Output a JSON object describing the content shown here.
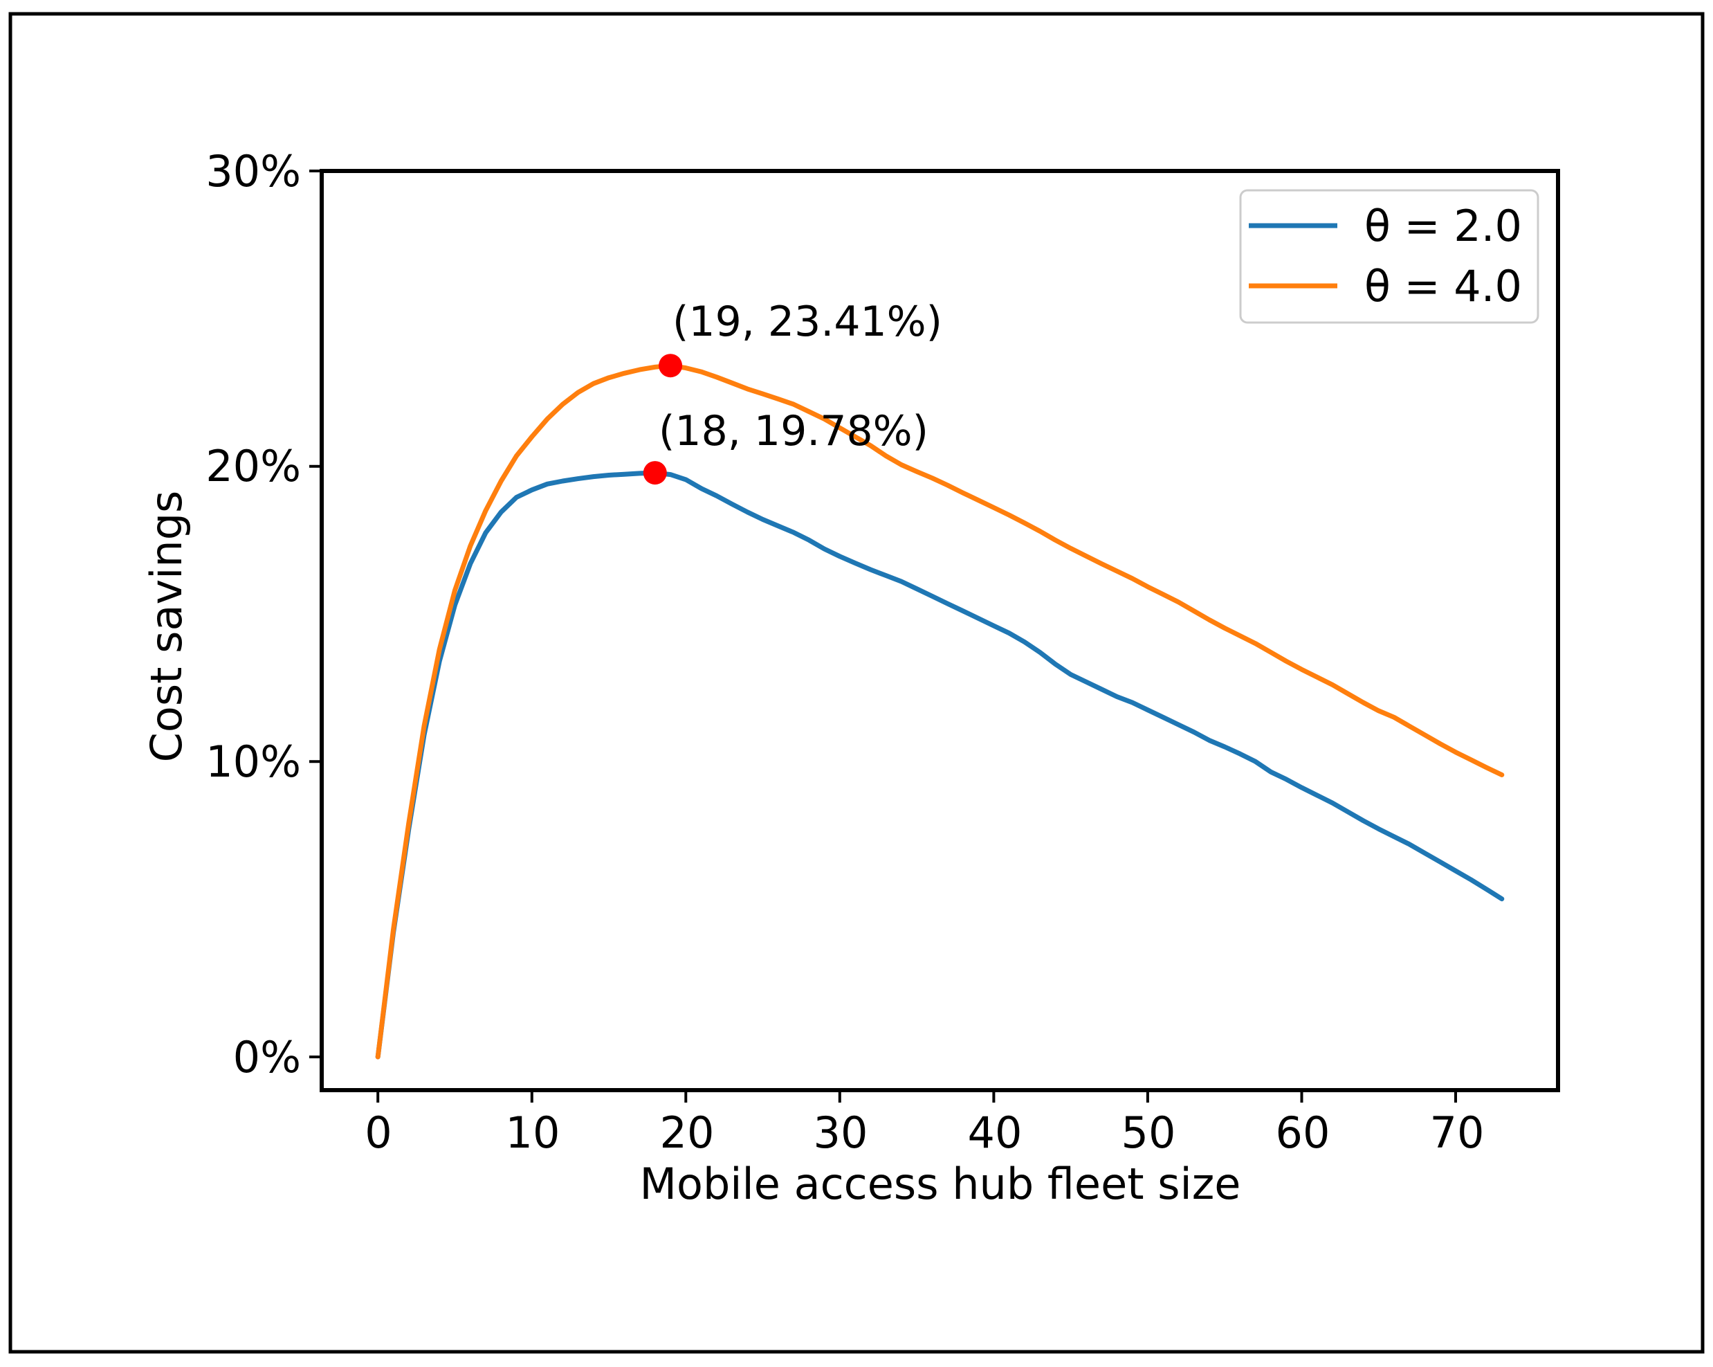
{
  "figure": {
    "background": "#ffffff",
    "outer_border_color": "#000000"
  },
  "chart_data": {
    "type": "line",
    "title": "",
    "xlabel": "Mobile access hub fleet size",
    "ylabel": "Cost savings",
    "grid": false,
    "xlim": [
      -3.65,
      76.65
    ],
    "ylim_pct": [
      -1.125,
      30
    ],
    "xticks": {
      "values": [
        0,
        10,
        20,
        30,
        40,
        50,
        60,
        70
      ],
      "labels": [
        "0",
        "10",
        "20",
        "30",
        "40",
        "50",
        "60",
        "70"
      ]
    },
    "yticks": {
      "values": [
        0,
        10,
        20,
        30
      ],
      "labels": [
        "0%",
        "10%",
        "20%",
        "30%"
      ]
    },
    "legend": {
      "position": "upper right",
      "entries": [
        {
          "label": "θ = 2.0",
          "color": "#1f77b4"
        },
        {
          "label": "θ = 4.0",
          "color": "#ff7f0e"
        }
      ]
    },
    "series": [
      {
        "name": "θ = 2.0",
        "color": "#1f77b4",
        "x_start": 0,
        "values_pct": [
          0.0,
          4.2,
          7.7,
          10.9,
          13.4,
          15.3,
          16.7,
          17.75,
          18.45,
          18.95,
          19.2,
          19.4,
          19.5,
          19.58,
          19.65,
          19.7,
          19.73,
          19.76,
          19.78,
          19.72,
          19.55,
          19.25,
          19.0,
          18.72,
          18.45,
          18.2,
          17.98,
          17.76,
          17.5,
          17.2,
          16.95,
          16.72,
          16.5,
          16.3,
          16.1,
          15.85,
          15.6,
          15.35,
          15.1,
          14.85,
          14.6,
          14.35,
          14.05,
          13.7,
          13.3,
          12.95,
          12.7,
          12.45,
          12.2,
          12.0,
          11.75,
          11.5,
          11.25,
          11.0,
          10.72,
          10.5,
          10.26,
          10.0,
          9.65,
          9.4,
          9.12,
          8.86,
          8.6,
          8.3,
          8.0,
          7.72,
          7.46,
          7.2,
          6.9,
          6.6,
          6.3,
          6.0,
          5.68,
          5.35
        ]
      },
      {
        "name": "θ = 4.0",
        "color": "#ff7f0e",
        "x_start": 0,
        "values_pct": [
          0.0,
          4.3,
          7.9,
          11.2,
          13.8,
          15.8,
          17.3,
          18.5,
          19.5,
          20.35,
          21.0,
          21.6,
          22.1,
          22.5,
          22.8,
          23.0,
          23.15,
          23.27,
          23.36,
          23.41,
          23.33,
          23.2,
          23.02,
          22.82,
          22.62,
          22.45,
          22.28,
          22.1,
          21.85,
          21.6,
          21.3,
          21.0,
          20.7,
          20.35,
          20.05,
          19.82,
          19.6,
          19.36,
          19.1,
          18.85,
          18.6,
          18.35,
          18.08,
          17.8,
          17.5,
          17.22,
          16.96,
          16.7,
          16.45,
          16.2,
          15.92,
          15.66,
          15.4,
          15.1,
          14.8,
          14.52,
          14.26,
          14.0,
          13.7,
          13.4,
          13.12,
          12.86,
          12.6,
          12.3,
          12.0,
          11.72,
          11.5,
          11.2,
          10.9,
          10.6,
          10.32,
          10.06,
          9.8,
          9.55
        ]
      }
    ],
    "annotations": [
      {
        "text": "(19, 23.41%)",
        "point": {
          "x": 19,
          "y_pct": 23.41
        },
        "marker_color": "#ff0000"
      },
      {
        "text": "(18, 19.78%)",
        "point": {
          "x": 18,
          "y_pct": 19.78
        },
        "marker_color": "#ff0000"
      }
    ]
  }
}
